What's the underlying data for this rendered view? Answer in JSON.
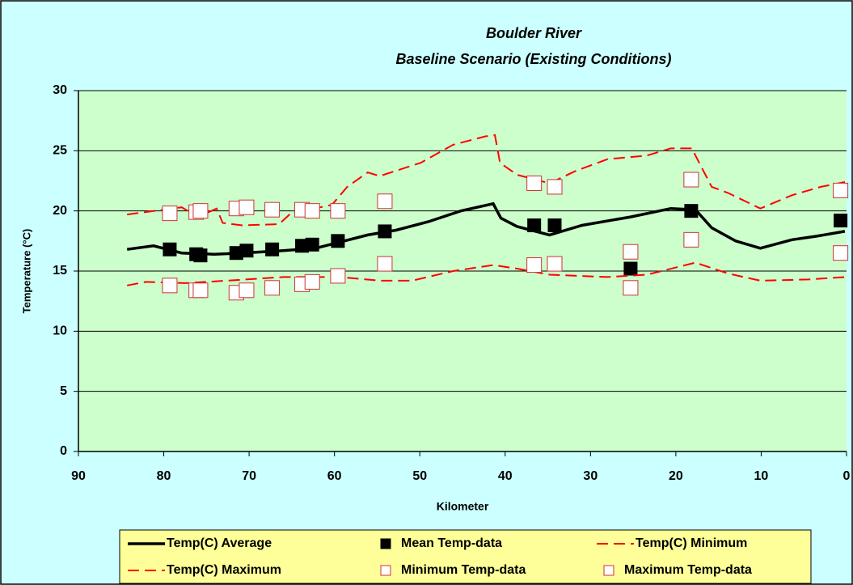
{
  "chart_data": {
    "type": "line",
    "title": "Boulder River",
    "subtitle": "Baseline Scenario (Existing Conditions)",
    "x_label": "Kilometer",
    "y_label": "Temperature (°C)",
    "xlim": [
      90,
      0
    ],
    "xticks": [
      90,
      80,
      70,
      60,
      50,
      40,
      30,
      20,
      10,
      0
    ],
    "ylim": [
      0,
      30
    ],
    "yticks": [
      0,
      5,
      10,
      15,
      20,
      25,
      30
    ],
    "grid": true,
    "legend": "bottom",
    "series": [
      {
        "name": "Temp(C) Average",
        "color": "#000000",
        "style": "solid",
        "x": [
          84.3,
          81.2,
          77.9,
          74.1,
          70.8,
          66.0,
          62.2,
          59.4,
          56.1,
          52.8,
          49.0,
          45.2,
          41.4,
          40.5,
          38.6,
          34.8,
          31.0,
          25.3,
          20.6,
          17.7,
          15.8,
          13.0,
          10.1,
          6.4,
          3.5,
          0.2
        ],
        "values": [
          16.8,
          17.1,
          16.5,
          16.4,
          16.5,
          16.7,
          16.9,
          17.4,
          18.0,
          18.4,
          19.1,
          20.0,
          20.6,
          19.4,
          18.7,
          18.0,
          18.8,
          19.5,
          20.2,
          20.1,
          18.6,
          17.5,
          16.9,
          17.6,
          17.9,
          18.3
        ]
      },
      {
        "name": "Mean Temp-data",
        "color": "#000000",
        "style": "filled",
        "x": [
          79.3,
          76.2,
          75.7,
          71.5,
          70.3,
          67.3,
          63.8,
          62.6,
          59.6,
          54.1,
          36.6,
          34.2,
          25.3,
          18.2,
          0.7
        ],
        "values": [
          16.8,
          16.4,
          16.3,
          16.5,
          16.7,
          16.8,
          17.1,
          17.2,
          17.5,
          18.3,
          18.8,
          18.8,
          15.2,
          20.0,
          19.2
        ]
      },
      {
        "name": "Temp(C) Minimum",
        "color": "#ff0000",
        "style": "dashed",
        "x": [
          84.3,
          82.1,
          77.4,
          72.7,
          66.0,
          59.4,
          54.7,
          50.9,
          46.1,
          41.4,
          38.6,
          34.8,
          28.0,
          23.4,
          17.7,
          13.9,
          10.1,
          4.5,
          0.2
        ],
        "values": [
          13.8,
          14.1,
          14.0,
          14.2,
          14.5,
          14.5,
          14.2,
          14.2,
          15.0,
          15.5,
          15.2,
          14.7,
          14.5,
          14.7,
          15.7,
          14.8,
          14.2,
          14.3,
          14.5
        ]
      },
      {
        "name": "Temp(C) Maximum",
        "color": "#ff0000",
        "style": "dashed",
        "x": [
          84.3,
          77.9,
          76.0,
          73.8,
          73.1,
          70.8,
          66.5,
          65.1,
          60.3,
          58.5,
          56.1,
          54.7,
          49.9,
          46.1,
          42.3,
          41.2,
          40.6,
          38.6,
          34.8,
          31.8,
          28.0,
          23.4,
          20.6,
          18.1,
          17.7,
          15.8,
          13.9,
          10.1,
          6.4,
          3.0,
          0.2
        ],
        "values": [
          19.7,
          20.3,
          19.5,
          20.2,
          19.0,
          18.8,
          18.9,
          19.8,
          20.5,
          22.0,
          23.2,
          22.9,
          24.0,
          25.5,
          26.2,
          26.3,
          24.0,
          23.0,
          22.3,
          23.3,
          24.3,
          24.6,
          25.2,
          25.2,
          24.6,
          22.0,
          21.5,
          20.2,
          21.3,
          22.0,
          22.4
        ]
      },
      {
        "name": "Minimum Temp-data",
        "color": "#cc3333",
        "style": "open",
        "x": [
          79.3,
          76.2,
          75.7,
          71.5,
          70.3,
          67.3,
          63.8,
          62.6,
          59.6,
          54.1,
          36.6,
          34.2,
          25.3,
          18.2,
          0.7
        ],
        "values": [
          13.8,
          13.4,
          13.4,
          13.2,
          13.4,
          13.6,
          13.9,
          14.1,
          14.6,
          15.6,
          15.5,
          15.6,
          13.6,
          17.6,
          16.5
        ]
      },
      {
        "name": "Maximum Temp-data",
        "color": "#cc3333",
        "style": "open",
        "x": [
          79.3,
          76.2,
          75.7,
          71.5,
          70.3,
          67.3,
          63.8,
          62.6,
          59.6,
          54.1,
          36.6,
          34.2,
          25.3,
          18.2,
          0.7
        ],
        "values": [
          19.8,
          19.9,
          20.0,
          20.2,
          20.3,
          20.1,
          20.1,
          20.0,
          20.0,
          20.8,
          22.3,
          22.0,
          16.6,
          22.6,
          21.7
        ]
      }
    ]
  }
}
